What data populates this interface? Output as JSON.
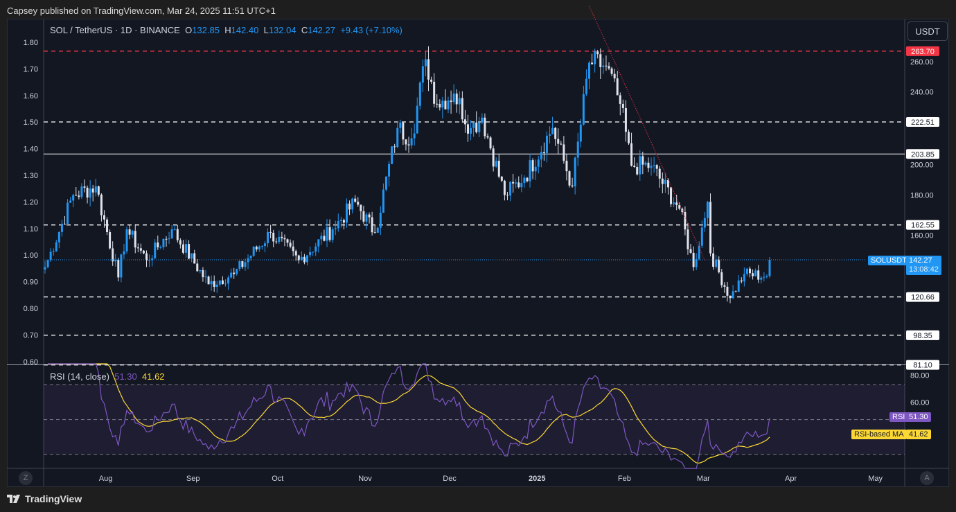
{
  "header": {
    "published": "Capsey published on TradingView.com, Mar 24, 2025 11:51 UTC+1"
  },
  "legend": {
    "symbol": "SOL / TetherUS · 1D · BINANCE",
    "o_label": "O",
    "o": "132.85",
    "h_label": "H",
    "h": "142.40",
    "l_label": "L",
    "l": "132.04",
    "c_label": "C",
    "c": "142.27",
    "change": "+9.43 (+7.10%)"
  },
  "rsi_legend": {
    "name": "RSI (14, close)",
    "rsi": "51.30",
    "ma": "41.62"
  },
  "currency_button": "USDT",
  "price_tag": {
    "symbol": "SOLUSDT",
    "price": "142.27",
    "countdown": "13:08:42"
  },
  "rsi_tags": {
    "rsi_label": "RSI",
    "rsi_value": "51.30",
    "ma_label": "RSI-based MA",
    "ma_value": "41.62"
  },
  "bottom": {
    "left_btn": "Z",
    "right_btn": "A",
    "logo": "TradingView"
  },
  "colors": {
    "up": "#2196f3",
    "down": "#e0e3eb",
    "rsi": "#7e57c2",
    "ma": "#fdd835",
    "resistance": "#f23645",
    "price_line": "#2196f3"
  },
  "chart_data": {
    "type": "candlestick",
    "symbol": "SOLUSDT",
    "interval": "1D",
    "x_range": [
      "2024-07-10",
      "2025-05-20"
    ],
    "ylim": [
      78,
      290
    ],
    "right_axis_ticks": [
      "260.00",
      "240.00",
      "200.00",
      "180.00",
      "160.00"
    ],
    "left_axis_ticks": [
      "1.80",
      "1.70",
      "1.60",
      "1.50",
      "1.40",
      "1.30",
      "1.20",
      "1.10",
      "1.00",
      "0.90",
      "0.80",
      "0.70",
      "0.60"
    ],
    "time_ticks": [
      "Aug",
      "Sep",
      "Oct",
      "Nov",
      "Dec",
      "2025",
      "Feb",
      "Mar",
      "Apr",
      "May"
    ],
    "levels": [
      {
        "price": 263.7,
        "label": "263.70",
        "style": "dashed",
        "color": "#f23645"
      },
      {
        "price": 222.51,
        "label": "222.51",
        "style": "dashed",
        "color": "#ffffff"
      },
      {
        "price": 203.85,
        "label": "203.85",
        "style": "solid",
        "color": "#ffffff"
      },
      {
        "price": 162.55,
        "label": "162.55",
        "style": "dashed",
        "color": "#ffffff"
      },
      {
        "price": 120.66,
        "label": "120.66",
        "style": "dashed",
        "color": "#ffffff"
      },
      {
        "price": 98.35,
        "label": "98.35",
        "style": "dashed",
        "color": "#ffffff"
      },
      {
        "price": 81.1,
        "label": "81.10",
        "style": "dashed",
        "color": "#ffffff"
      }
    ],
    "trendline": {
      "from": [
        "2025-01-19",
        290
      ],
      "to": [
        "2025-03-01",
        142
      ]
    },
    "close_path": [
      [
        "2024-07-10",
        138
      ],
      [
        "2024-07-20",
        180
      ],
      [
        "2024-07-28",
        185
      ],
      [
        "2024-08-05",
        132
      ],
      [
        "2024-08-08",
        160
      ],
      [
        "2024-08-15",
        142
      ],
      [
        "2024-08-24",
        160
      ],
      [
        "2024-09-06",
        128
      ],
      [
        "2024-09-15",
        134
      ],
      [
        "2024-09-28",
        158
      ],
      [
        "2024-10-08",
        142
      ],
      [
        "2024-10-20",
        160
      ],
      [
        "2024-10-28",
        176
      ],
      [
        "2024-11-04",
        158
      ],
      [
        "2024-11-12",
        219
      ],
      [
        "2024-11-17",
        213
      ],
      [
        "2024-11-22",
        259
      ],
      [
        "2024-11-26",
        233
      ],
      [
        "2024-12-02",
        239
      ],
      [
        "2024-12-08",
        219
      ],
      [
        "2024-12-12",
        225
      ],
      [
        "2024-12-20",
        180
      ],
      [
        "2024-12-27",
        190
      ],
      [
        "2025-01-06",
        219
      ],
      [
        "2025-01-13",
        185
      ],
      [
        "2025-01-19",
        257
      ],
      [
        "2025-01-25",
        255
      ],
      [
        "2025-01-30",
        233
      ],
      [
        "2025-02-03",
        197
      ],
      [
        "2025-02-10",
        197
      ],
      [
        "2025-02-20",
        172
      ],
      [
        "2025-02-25",
        138
      ],
      [
        "2025-03-02",
        176
      ],
      [
        "2025-03-03",
        146
      ],
      [
        "2025-03-10",
        120
      ],
      [
        "2025-03-15",
        134
      ],
      [
        "2025-03-23",
        132.85
      ],
      [
        "2025-03-24",
        142.27
      ]
    ],
    "rsi": {
      "period": 14,
      "ma_period": 14,
      "levels": [
        70,
        50,
        30
      ],
      "axis_ticks": [
        "80.00",
        "60.00"
      ]
    }
  }
}
